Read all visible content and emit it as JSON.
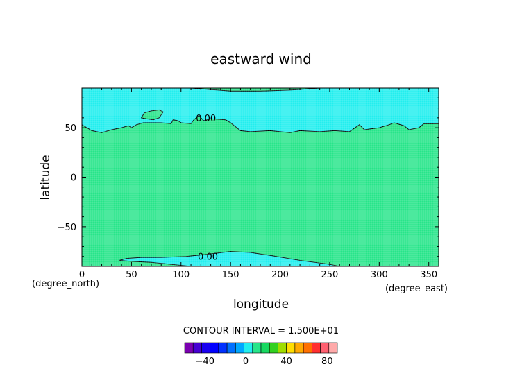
{
  "chart_data": {
    "type": "contour",
    "title": "eastward wind",
    "xlabel": "longitude",
    "ylabel": "latitude",
    "x_unit": "(degree_east)",
    "y_unit": "(degree_north)",
    "xlim": [
      0,
      360
    ],
    "ylim": [
      -90,
      90
    ],
    "x_ticks": [
      0,
      50,
      100,
      150,
      200,
      250,
      300,
      350
    ],
    "y_ticks": [
      -50,
      0,
      50
    ],
    "contour_labels": [
      {
        "text": "0.00",
        "x": 115,
        "y": 60
      },
      {
        "text": "0.00",
        "x": 117,
        "y": -80
      }
    ],
    "regions": [
      {
        "name": "positive",
        "level_range": [
          0,
          15
        ],
        "color": "#27e58a"
      },
      {
        "name": "negative",
        "level_range": [
          -15,
          0
        ],
        "color": "#22eeee"
      }
    ],
    "negative_regions": {
      "north_boundary": [
        [
          0,
          53
        ],
        [
          10,
          47
        ],
        [
          20,
          45
        ],
        [
          30,
          48
        ],
        [
          40,
          50
        ],
        [
          47,
          52
        ],
        [
          50,
          50
        ],
        [
          55,
          53
        ],
        [
          62,
          55
        ],
        [
          70,
          55
        ],
        [
          80,
          55
        ],
        [
          90,
          54
        ],
        [
          92,
          58
        ],
        [
          97,
          57
        ],
        [
          100,
          55
        ],
        [
          110,
          54
        ],
        [
          113,
          58
        ],
        [
          118,
          62
        ],
        [
          123,
          57
        ],
        [
          130,
          59
        ],
        [
          145,
          58
        ],
        [
          150,
          55
        ],
        [
          160,
          47
        ],
        [
          170,
          46
        ],
        [
          190,
          47
        ],
        [
          210,
          45
        ],
        [
          220,
          47
        ],
        [
          240,
          46
        ],
        [
          255,
          47
        ],
        [
          270,
          46
        ],
        [
          280,
          53
        ],
        [
          285,
          48
        ],
        [
          300,
          50
        ],
        [
          310,
          53
        ],
        [
          315,
          55
        ],
        [
          325,
          52
        ],
        [
          330,
          48
        ],
        [
          340,
          50
        ],
        [
          345,
          54
        ],
        [
          360,
          54
        ]
      ],
      "north_island": [
        [
          60,
          60
        ],
        [
          65,
          59
        ],
        [
          72,
          58
        ],
        [
          78,
          60
        ],
        [
          82,
          66
        ],
        [
          78,
          68
        ],
        [
          70,
          67
        ],
        [
          63,
          65
        ]
      ],
      "south": [
        [
          38,
          -84
        ],
        [
          50,
          -85
        ],
        [
          70,
          -86
        ],
        [
          90,
          -88
        ],
        [
          110,
          -90
        ],
        [
          260,
          -90
        ],
        [
          250,
          -88
        ],
        [
          220,
          -84
        ],
        [
          190,
          -79
        ],
        [
          170,
          -76
        ],
        [
          150,
          -75
        ],
        [
          125,
          -78
        ],
        [
          105,
          -80
        ],
        [
          80,
          -81
        ],
        [
          60,
          -81
        ],
        [
          45,
          -82
        ]
      ]
    },
    "north_cap_positive": [
      [
        110,
        90
      ],
      [
        150,
        87
      ],
      [
        180,
        87
      ],
      [
        210,
        88
      ],
      [
        240,
        90
      ]
    ],
    "colorbar": {
      "label": "CONTOUR INTERVAL = 1.500E+01",
      "ticks": [
        -40,
        0,
        40,
        80
      ],
      "colors": [
        "#7a00b0",
        "#4600d2",
        "#1a00f0",
        "#0000ff",
        "#0030ff",
        "#0070ff",
        "#00a8ff",
        "#22eeee",
        "#27e58a",
        "#18d860",
        "#32d020",
        "#a0dc00",
        "#ffdd00",
        "#ffaa00",
        "#ff7000",
        "#ff3030",
        "#ff6070",
        "#ffaaaa"
      ]
    },
    "grid": true
  }
}
